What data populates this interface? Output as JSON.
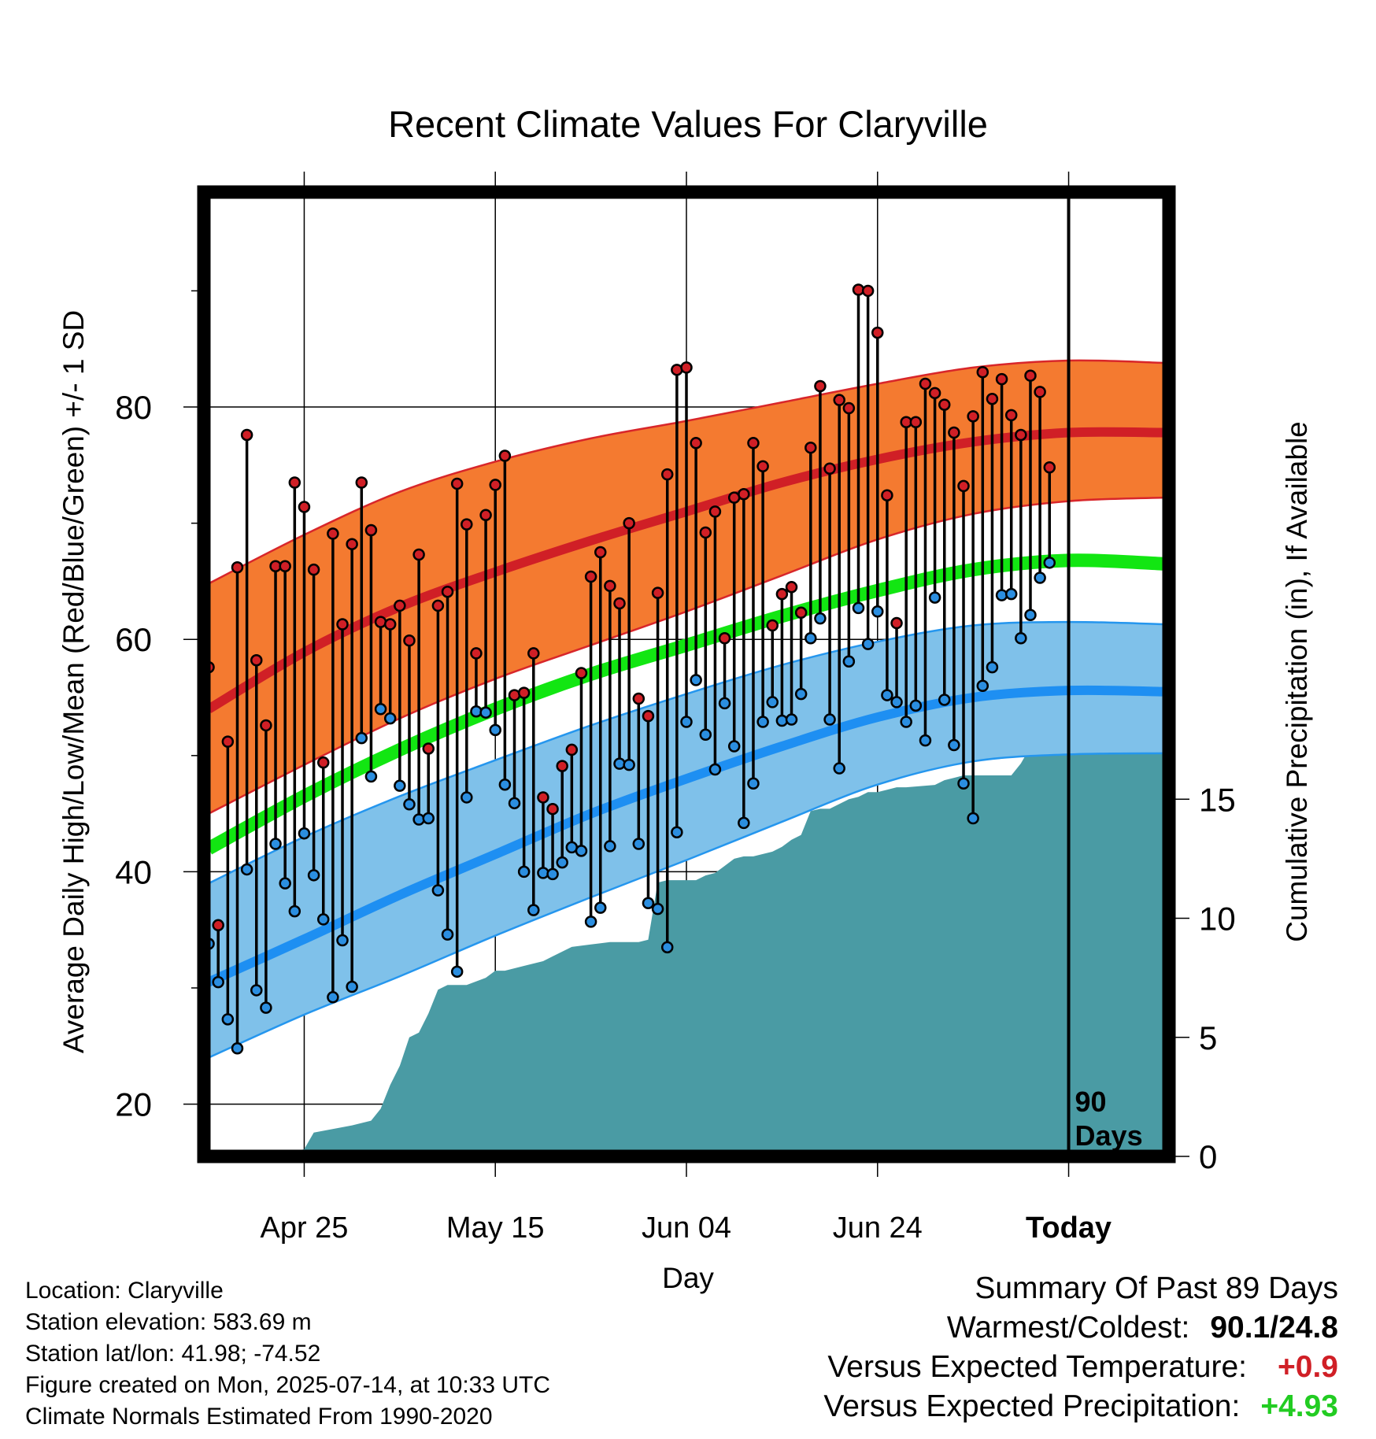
{
  "chart_data": {
    "type": "line",
    "title": "Recent Climate Values For Claryville",
    "xlabel": "Day",
    "ylabel": "Average Daily High/Low/Mean (Red/Blue/Green) +/- 1 SD",
    "y2label": "Cumulative Precipitation (in), If Available",
    "x_tick_labels": [
      "Apr 25",
      "May 15",
      "Jun 04",
      "Jun 24",
      "Today"
    ],
    "x_tick_days": [
      10,
      30,
      50,
      70,
      90
    ],
    "x_range_days": [
      -0.5,
      100.5
    ],
    "ylim": [
      15.5,
      98.5
    ],
    "y_ticks": [
      20,
      40,
      60,
      80
    ],
    "y_minor_ticks": [
      30,
      50,
      70,
      90
    ],
    "y2lim": [
      0,
      40.5
    ],
    "y2_ticks": [
      0,
      5,
      10,
      15
    ],
    "today_marker_label_line1": "90",
    "today_marker_label_line2": "Days",
    "colors": {
      "high_band": "#f47a30",
      "high_band_edge": "#d8262a",
      "high_mean": "#d01f26",
      "low_band": "#7fc1ea",
      "low_band_edge": "#2596ee",
      "low_mean": "#1e8ff2",
      "daily_mean": "#12e612",
      "precip": "#4a9ba4",
      "high_dot": "#d01f26",
      "low_dot": "#2b8ee0"
    },
    "normals": {
      "days": [
        0,
        10,
        20,
        30,
        40,
        50,
        60,
        70,
        80,
        90,
        100
      ],
      "high_mean": [
        54,
        58.9,
        62.8,
        65.8,
        68.5,
        71,
        73.5,
        75.5,
        77,
        77.8,
        77.8
      ],
      "high_upper": [
        64.8,
        69,
        72.7,
        75.3,
        77.3,
        78.8,
        80.4,
        82,
        83.4,
        84,
        83.8
      ],
      "high_lower": [
        45,
        49.2,
        53.2,
        56.6,
        59.5,
        62.4,
        65.5,
        68.6,
        70.8,
        71.9,
        72.2
      ],
      "daily_mean": [
        42,
        46.5,
        50.5,
        54,
        57,
        59.5,
        62,
        64.2,
        66,
        66.8,
        66.5
      ],
      "low_mean": [
        30.5,
        34.2,
        38,
        41.5,
        45,
        48,
        50.8,
        53.3,
        55,
        55.6,
        55.5
      ],
      "low_upper": [
        39,
        43,
        46.5,
        49.6,
        52.6,
        55.3,
        57.8,
        59.8,
        61.2,
        61.5,
        61.3
      ],
      "low_lower": [
        24,
        27.7,
        31,
        34.5,
        37.8,
        41,
        44.3,
        47.5,
        49.5,
        50.1,
        50.2
      ]
    },
    "series": [
      {
        "name": "Daily High",
        "values": [
          57.6,
          35.4,
          51.2,
          66.2,
          77.6,
          58.2,
          52.6,
          66.3,
          66.3,
          73.5,
          71.4,
          66.0,
          49.4,
          69.1,
          61.3,
          68.2,
          73.5,
          69.4,
          61.5,
          61.3,
          62.9,
          59.9,
          67.3,
          50.6,
          62.9,
          64.1,
          73.4,
          69.9,
          58.8,
          70.7,
          73.3,
          75.8,
          55.2,
          55.4,
          58.8,
          46.4,
          45.4,
          49.1,
          50.5,
          57.1,
          65.4,
          67.5,
          64.6,
          63.1,
          70.0,
          54.9,
          53.4,
          64.0,
          74.2,
          83.2,
          83.4,
          76.9,
          69.2,
          71.0,
          60.1,
          72.2,
          72.5,
          76.9,
          74.9,
          61.2,
          63.9,
          64.5,
          62.3,
          76.5,
          81.8,
          74.7,
          80.6,
          79.9,
          90.1,
          90.0,
          86.4,
          72.4,
          61.4,
          78.7,
          78.7,
          82.0,
          81.2,
          80.2,
          77.8,
          73.2,
          79.2,
          83.0,
          80.7,
          82.4,
          79.3,
          77.6,
          82.7,
          81.3,
          74.8
        ]
      },
      {
        "name": "Daily Low",
        "values": [
          33.8,
          30.5,
          27.3,
          24.8,
          40.2,
          29.8,
          28.3,
          42.4,
          39.0,
          36.6,
          43.3,
          39.7,
          35.9,
          29.2,
          34.1,
          30.1,
          51.5,
          48.2,
          54.0,
          53.2,
          47.4,
          45.8,
          44.5,
          44.6,
          38.4,
          34.6,
          31.4,
          46.4,
          53.8,
          53.7,
          52.2,
          47.5,
          45.9,
          40.0,
          36.7,
          39.9,
          39.8,
          40.8,
          42.1,
          41.8,
          35.7,
          36.9,
          42.2,
          49.3,
          49.2,
          42.4,
          37.3,
          36.8,
          33.5,
          43.4,
          52.9,
          56.5,
          51.8,
          48.8,
          54.5,
          50.8,
          44.2,
          47.6,
          52.9,
          54.6,
          53.0,
          53.1,
          55.3,
          60.1,
          61.8,
          53.1,
          48.9,
          58.1,
          62.7,
          59.6,
          62.4,
          55.2,
          54.6,
          52.9,
          54.3,
          51.3,
          63.6,
          54.8,
          50.9,
          47.6,
          44.6,
          56.0,
          57.6,
          63.8,
          63.9,
          60.1,
          62.1,
          65.3,
          66.6
        ]
      },
      {
        "name": "Cumulative Precipitation",
        "x": [
          0,
          6,
          9,
          10,
          11,
          15,
          17,
          18,
          19,
          20,
          21,
          22,
          23,
          24,
          25,
          27,
          29,
          30,
          31,
          33,
          35,
          36,
          37,
          38,
          40,
          42,
          45,
          46,
          47,
          48,
          50,
          51,
          52,
          53,
          54,
          55,
          56,
          57,
          59,
          60,
          61,
          62,
          63,
          64,
          65,
          67,
          68,
          69,
          70,
          71,
          72,
          73,
          76,
          77,
          78,
          79,
          80,
          84,
          85,
          86,
          87,
          88,
          89,
          90,
          100
        ],
        "values": [
          0,
          0,
          0.2,
          0.3,
          1.0,
          1.3,
          1.5,
          2.0,
          3.0,
          3.8,
          5.0,
          5.2,
          6.0,
          7.0,
          7.2,
          7.2,
          7.5,
          7.8,
          7.8,
          8.0,
          8.2,
          8.4,
          8.6,
          8.8,
          8.9,
          9.0,
          9.0,
          9.1,
          11.5,
          11.6,
          11.6,
          11.6,
          11.8,
          11.9,
          12.2,
          12.5,
          12.6,
          12.6,
          12.8,
          13.0,
          13.3,
          13.5,
          14.5,
          14.6,
          14.6,
          15.0,
          15.1,
          15.3,
          15.3,
          15.4,
          15.5,
          15.5,
          15.6,
          15.8,
          15.9,
          16.0,
          16.0,
          16.0,
          16.5,
          17.2,
          17.5,
          17.8,
          18.0,
          18.0,
          18.0
        ]
      }
    ]
  },
  "info": {
    "location": "Location: Claryville",
    "elevation": "Station elevation: 583.69 m",
    "latlon": "Station lat/lon: 41.98; -74.52",
    "created": "Figure created on Mon, 2025-07-14, at 10:33 UTC",
    "normals": "Climate Normals Estimated From 1990-2020"
  },
  "summary": {
    "title": "Summary Of Past 89 Days",
    "warmest_label": "Warmest/Coldest:",
    "warmest_value": "90.1/24.8",
    "temp_label": "Versus Expected Temperature:",
    "temp_value": "+0.9",
    "precip_label": "Versus Expected Precipitation:",
    "precip_value": "+4.93"
  }
}
